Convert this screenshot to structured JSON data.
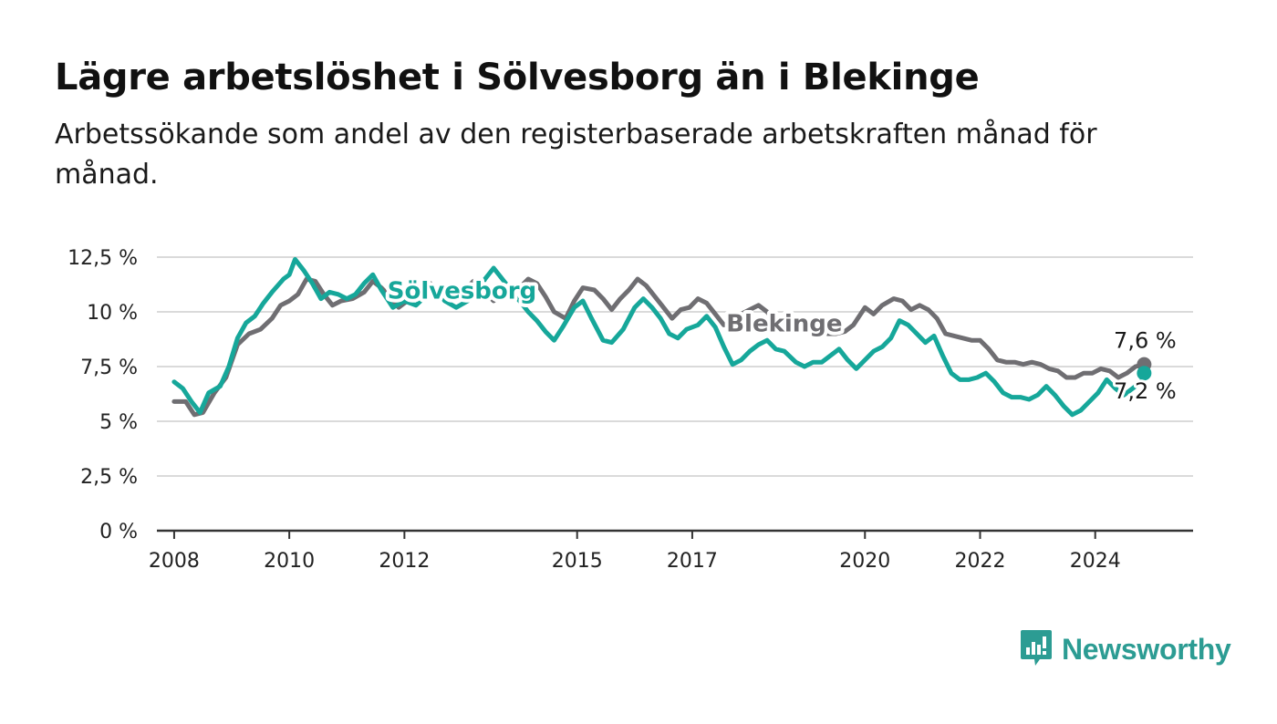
{
  "header": {
    "title": "Lägre arbetslöshet i Sölvesborg än i Blekinge",
    "subtitle": "Arbetssökande som andel av den registerbaserade arbetskraften månad för månad."
  },
  "brand": {
    "name": "Newsworthy",
    "icon": "newsworthy-logo-icon"
  },
  "colors": {
    "solvesborg": "#16a79a",
    "blekinge": "#6f6e72",
    "grid": "#dadada",
    "axis": "#333333",
    "text": "#222222"
  },
  "chart_data": {
    "type": "line",
    "x_unit": "year",
    "xlim": [
      2007.7,
      2025.7
    ],
    "ylim": [
      0,
      12.5
    ],
    "y_ticks": [
      {
        "value": 0,
        "label": "0 %"
      },
      {
        "value": 2.5,
        "label": "2,5 %"
      },
      {
        "value": 5,
        "label": "5 %"
      },
      {
        "value": 7.5,
        "label": "7,5 %"
      },
      {
        "value": 10,
        "label": "10 %"
      },
      {
        "value": 12.5,
        "label": "12,5 %"
      }
    ],
    "x_ticks": [
      {
        "value": 2008,
        "label": "2008"
      },
      {
        "value": 2010,
        "label": "2010"
      },
      {
        "value": 2012,
        "label": "2012"
      },
      {
        "value": 2015,
        "label": "2015"
      },
      {
        "value": 2017,
        "label": "2017"
      },
      {
        "value": 2020,
        "label": "2020"
      },
      {
        "value": 2022,
        "label": "2022"
      },
      {
        "value": 2024,
        "label": "2024"
      }
    ],
    "grid": true,
    "series": [
      {
        "name": "Blekinge",
        "color": "#6f6e72",
        "label_at": [
          2018.6,
          9.1
        ],
        "end_label": "7,6 %",
        "points": [
          [
            2008.0,
            5.9
          ],
          [
            2008.2,
            5.9
          ],
          [
            2008.35,
            5.3
          ],
          [
            2008.5,
            5.4
          ],
          [
            2008.7,
            6.3
          ],
          [
            2008.9,
            7.0
          ],
          [
            2009.1,
            8.5
          ],
          [
            2009.3,
            9.0
          ],
          [
            2009.5,
            9.2
          ],
          [
            2009.7,
            9.7
          ],
          [
            2009.85,
            10.3
          ],
          [
            2010.0,
            10.5
          ],
          [
            2010.15,
            10.8
          ],
          [
            2010.3,
            11.5
          ],
          [
            2010.45,
            11.4
          ],
          [
            2010.6,
            10.8
          ],
          [
            2010.75,
            10.3
          ],
          [
            2010.9,
            10.5
          ],
          [
            2011.1,
            10.6
          ],
          [
            2011.3,
            10.9
          ],
          [
            2011.45,
            11.4
          ],
          [
            2011.6,
            11.1
          ],
          [
            2011.75,
            10.7
          ],
          [
            2011.9,
            10.2
          ],
          [
            2012.05,
            10.5
          ],
          [
            2012.25,
            10.9
          ],
          [
            2012.45,
            11.3
          ],
          [
            2012.6,
            10.9
          ],
          [
            2012.8,
            10.5
          ],
          [
            2013.0,
            10.9
          ],
          [
            2013.2,
            11.4
          ],
          [
            2013.4,
            10.9
          ],
          [
            2013.55,
            10.5
          ],
          [
            2013.7,
            10.9
          ],
          [
            2013.85,
            11.2
          ],
          [
            2014.0,
            11.1
          ],
          [
            2014.15,
            11.5
          ],
          [
            2014.3,
            11.3
          ],
          [
            2014.45,
            10.7
          ],
          [
            2014.6,
            10.0
          ],
          [
            2014.8,
            9.7
          ],
          [
            2014.95,
            10.5
          ],
          [
            2015.1,
            11.1
          ],
          [
            2015.3,
            11.0
          ],
          [
            2015.45,
            10.6
          ],
          [
            2015.6,
            10.1
          ],
          [
            2015.75,
            10.6
          ],
          [
            2015.9,
            11.0
          ],
          [
            2016.05,
            11.5
          ],
          [
            2016.2,
            11.2
          ],
          [
            2016.35,
            10.7
          ],
          [
            2016.5,
            10.2
          ],
          [
            2016.65,
            9.7
          ],
          [
            2016.8,
            10.1
          ],
          [
            2016.95,
            10.2
          ],
          [
            2017.1,
            10.6
          ],
          [
            2017.25,
            10.4
          ],
          [
            2017.4,
            9.9
          ],
          [
            2017.55,
            9.4
          ],
          [
            2017.7,
            9.5
          ],
          [
            2017.85,
            9.9
          ],
          [
            2018.0,
            10.1
          ],
          [
            2018.15,
            10.3
          ],
          [
            2018.3,
            10.0
          ],
          [
            2018.45,
            9.5
          ],
          [
            2018.6,
            9.1
          ],
          [
            2018.75,
            9.1
          ],
          [
            2018.9,
            9.1
          ],
          [
            2019.05,
            9.2
          ],
          [
            2019.2,
            9.1
          ],
          [
            2019.35,
            9.0
          ],
          [
            2019.5,
            9.0
          ],
          [
            2019.65,
            9.1
          ],
          [
            2019.8,
            9.4
          ],
          [
            2020.0,
            10.2
          ],
          [
            2020.15,
            9.9
          ],
          [
            2020.3,
            10.3
          ],
          [
            2020.5,
            10.6
          ],
          [
            2020.65,
            10.5
          ],
          [
            2020.8,
            10.1
          ],
          [
            2020.95,
            10.3
          ],
          [
            2021.1,
            10.1
          ],
          [
            2021.25,
            9.7
          ],
          [
            2021.4,
            9.0
          ],
          [
            2021.55,
            8.9
          ],
          [
            2021.7,
            8.8
          ],
          [
            2021.85,
            8.7
          ],
          [
            2022.0,
            8.7
          ],
          [
            2022.15,
            8.3
          ],
          [
            2022.3,
            7.8
          ],
          [
            2022.45,
            7.7
          ],
          [
            2022.6,
            7.7
          ],
          [
            2022.75,
            7.6
          ],
          [
            2022.9,
            7.7
          ],
          [
            2023.05,
            7.6
          ],
          [
            2023.2,
            7.4
          ],
          [
            2023.35,
            7.3
          ],
          [
            2023.5,
            7.0
          ],
          [
            2023.65,
            7.0
          ],
          [
            2023.8,
            7.2
          ],
          [
            2023.95,
            7.2
          ],
          [
            2024.1,
            7.4
          ],
          [
            2024.25,
            7.3
          ],
          [
            2024.4,
            7.0
          ],
          [
            2024.55,
            7.2
          ],
          [
            2024.7,
            7.5
          ],
          [
            2024.85,
            7.6
          ]
        ]
      },
      {
        "name": "Sölvesborg",
        "color": "#16a79a",
        "label_at": [
          2013.0,
          10.6
        ],
        "end_label": "7,2 %",
        "points": [
          [
            2008.0,
            6.8
          ],
          [
            2008.15,
            6.5
          ],
          [
            2008.3,
            5.9
          ],
          [
            2008.45,
            5.4
          ],
          [
            2008.6,
            6.3
          ],
          [
            2008.8,
            6.6
          ],
          [
            2008.95,
            7.5
          ],
          [
            2009.1,
            8.8
          ],
          [
            2009.25,
            9.5
          ],
          [
            2009.4,
            9.8
          ],
          [
            2009.55,
            10.4
          ],
          [
            2009.7,
            10.9
          ],
          [
            2009.9,
            11.5
          ],
          [
            2010.0,
            11.7
          ],
          [
            2010.1,
            12.4
          ],
          [
            2010.25,
            11.9
          ],
          [
            2010.4,
            11.3
          ],
          [
            2010.55,
            10.6
          ],
          [
            2010.7,
            10.9
          ],
          [
            2010.85,
            10.8
          ],
          [
            2011.0,
            10.6
          ],
          [
            2011.15,
            10.8
          ],
          [
            2011.3,
            11.3
          ],
          [
            2011.45,
            11.7
          ],
          [
            2011.6,
            11.0
          ],
          [
            2011.8,
            10.2
          ],
          [
            2012.0,
            10.5
          ],
          [
            2012.2,
            10.3
          ],
          [
            2012.4,
            10.8
          ],
          [
            2012.55,
            11.0
          ],
          [
            2012.7,
            10.5
          ],
          [
            2012.9,
            10.2
          ],
          [
            2013.1,
            10.5
          ],
          [
            2013.25,
            10.8
          ],
          [
            2013.4,
            11.5
          ],
          [
            2013.55,
            12.0
          ],
          [
            2013.7,
            11.5
          ],
          [
            2013.85,
            11.0
          ],
          [
            2014.0,
            10.5
          ],
          [
            2014.15,
            10.0
          ],
          [
            2014.3,
            9.6
          ],
          [
            2014.45,
            9.1
          ],
          [
            2014.6,
            8.7
          ],
          [
            2014.75,
            9.3
          ],
          [
            2014.95,
            10.2
          ],
          [
            2015.1,
            10.5
          ],
          [
            2015.25,
            9.7
          ],
          [
            2015.45,
            8.7
          ],
          [
            2015.6,
            8.6
          ],
          [
            2015.8,
            9.2
          ],
          [
            2016.0,
            10.2
          ],
          [
            2016.15,
            10.6
          ],
          [
            2016.3,
            10.2
          ],
          [
            2016.45,
            9.7
          ],
          [
            2016.6,
            9.0
          ],
          [
            2016.75,
            8.8
          ],
          [
            2016.9,
            9.2
          ],
          [
            2017.1,
            9.4
          ],
          [
            2017.25,
            9.8
          ],
          [
            2017.4,
            9.3
          ],
          [
            2017.55,
            8.4
          ],
          [
            2017.7,
            7.6
          ],
          [
            2017.85,
            7.8
          ],
          [
            2018.0,
            8.2
          ],
          [
            2018.15,
            8.5
          ],
          [
            2018.3,
            8.7
          ],
          [
            2018.45,
            8.3
          ],
          [
            2018.6,
            8.2
          ],
          [
            2018.8,
            7.7
          ],
          [
            2018.95,
            7.5
          ],
          [
            2019.1,
            7.7
          ],
          [
            2019.25,
            7.7
          ],
          [
            2019.4,
            8.0
          ],
          [
            2019.55,
            8.3
          ],
          [
            2019.7,
            7.8
          ],
          [
            2019.85,
            7.4
          ],
          [
            2020.0,
            7.8
          ],
          [
            2020.15,
            8.2
          ],
          [
            2020.3,
            8.4
          ],
          [
            2020.45,
            8.8
          ],
          [
            2020.6,
            9.6
          ],
          [
            2020.75,
            9.4
          ],
          [
            2020.9,
            9.0
          ],
          [
            2021.05,
            8.6
          ],
          [
            2021.2,
            8.9
          ],
          [
            2021.35,
            8.0
          ],
          [
            2021.5,
            7.2
          ],
          [
            2021.65,
            6.9
          ],
          [
            2021.8,
            6.9
          ],
          [
            2021.95,
            7.0
          ],
          [
            2022.1,
            7.2
          ],
          [
            2022.25,
            6.8
          ],
          [
            2022.4,
            6.3
          ],
          [
            2022.55,
            6.1
          ],
          [
            2022.7,
            6.1
          ],
          [
            2022.85,
            6.0
          ],
          [
            2023.0,
            6.2
          ],
          [
            2023.15,
            6.6
          ],
          [
            2023.3,
            6.2
          ],
          [
            2023.45,
            5.7
          ],
          [
            2023.6,
            5.3
          ],
          [
            2023.75,
            5.5
          ],
          [
            2023.9,
            5.9
          ],
          [
            2024.05,
            6.3
          ],
          [
            2024.2,
            6.9
          ],
          [
            2024.35,
            6.5
          ],
          [
            2024.5,
            6.2
          ],
          [
            2024.65,
            6.5
          ],
          [
            2024.8,
            6.8
          ],
          [
            2024.85,
            7.2
          ]
        ]
      }
    ]
  }
}
